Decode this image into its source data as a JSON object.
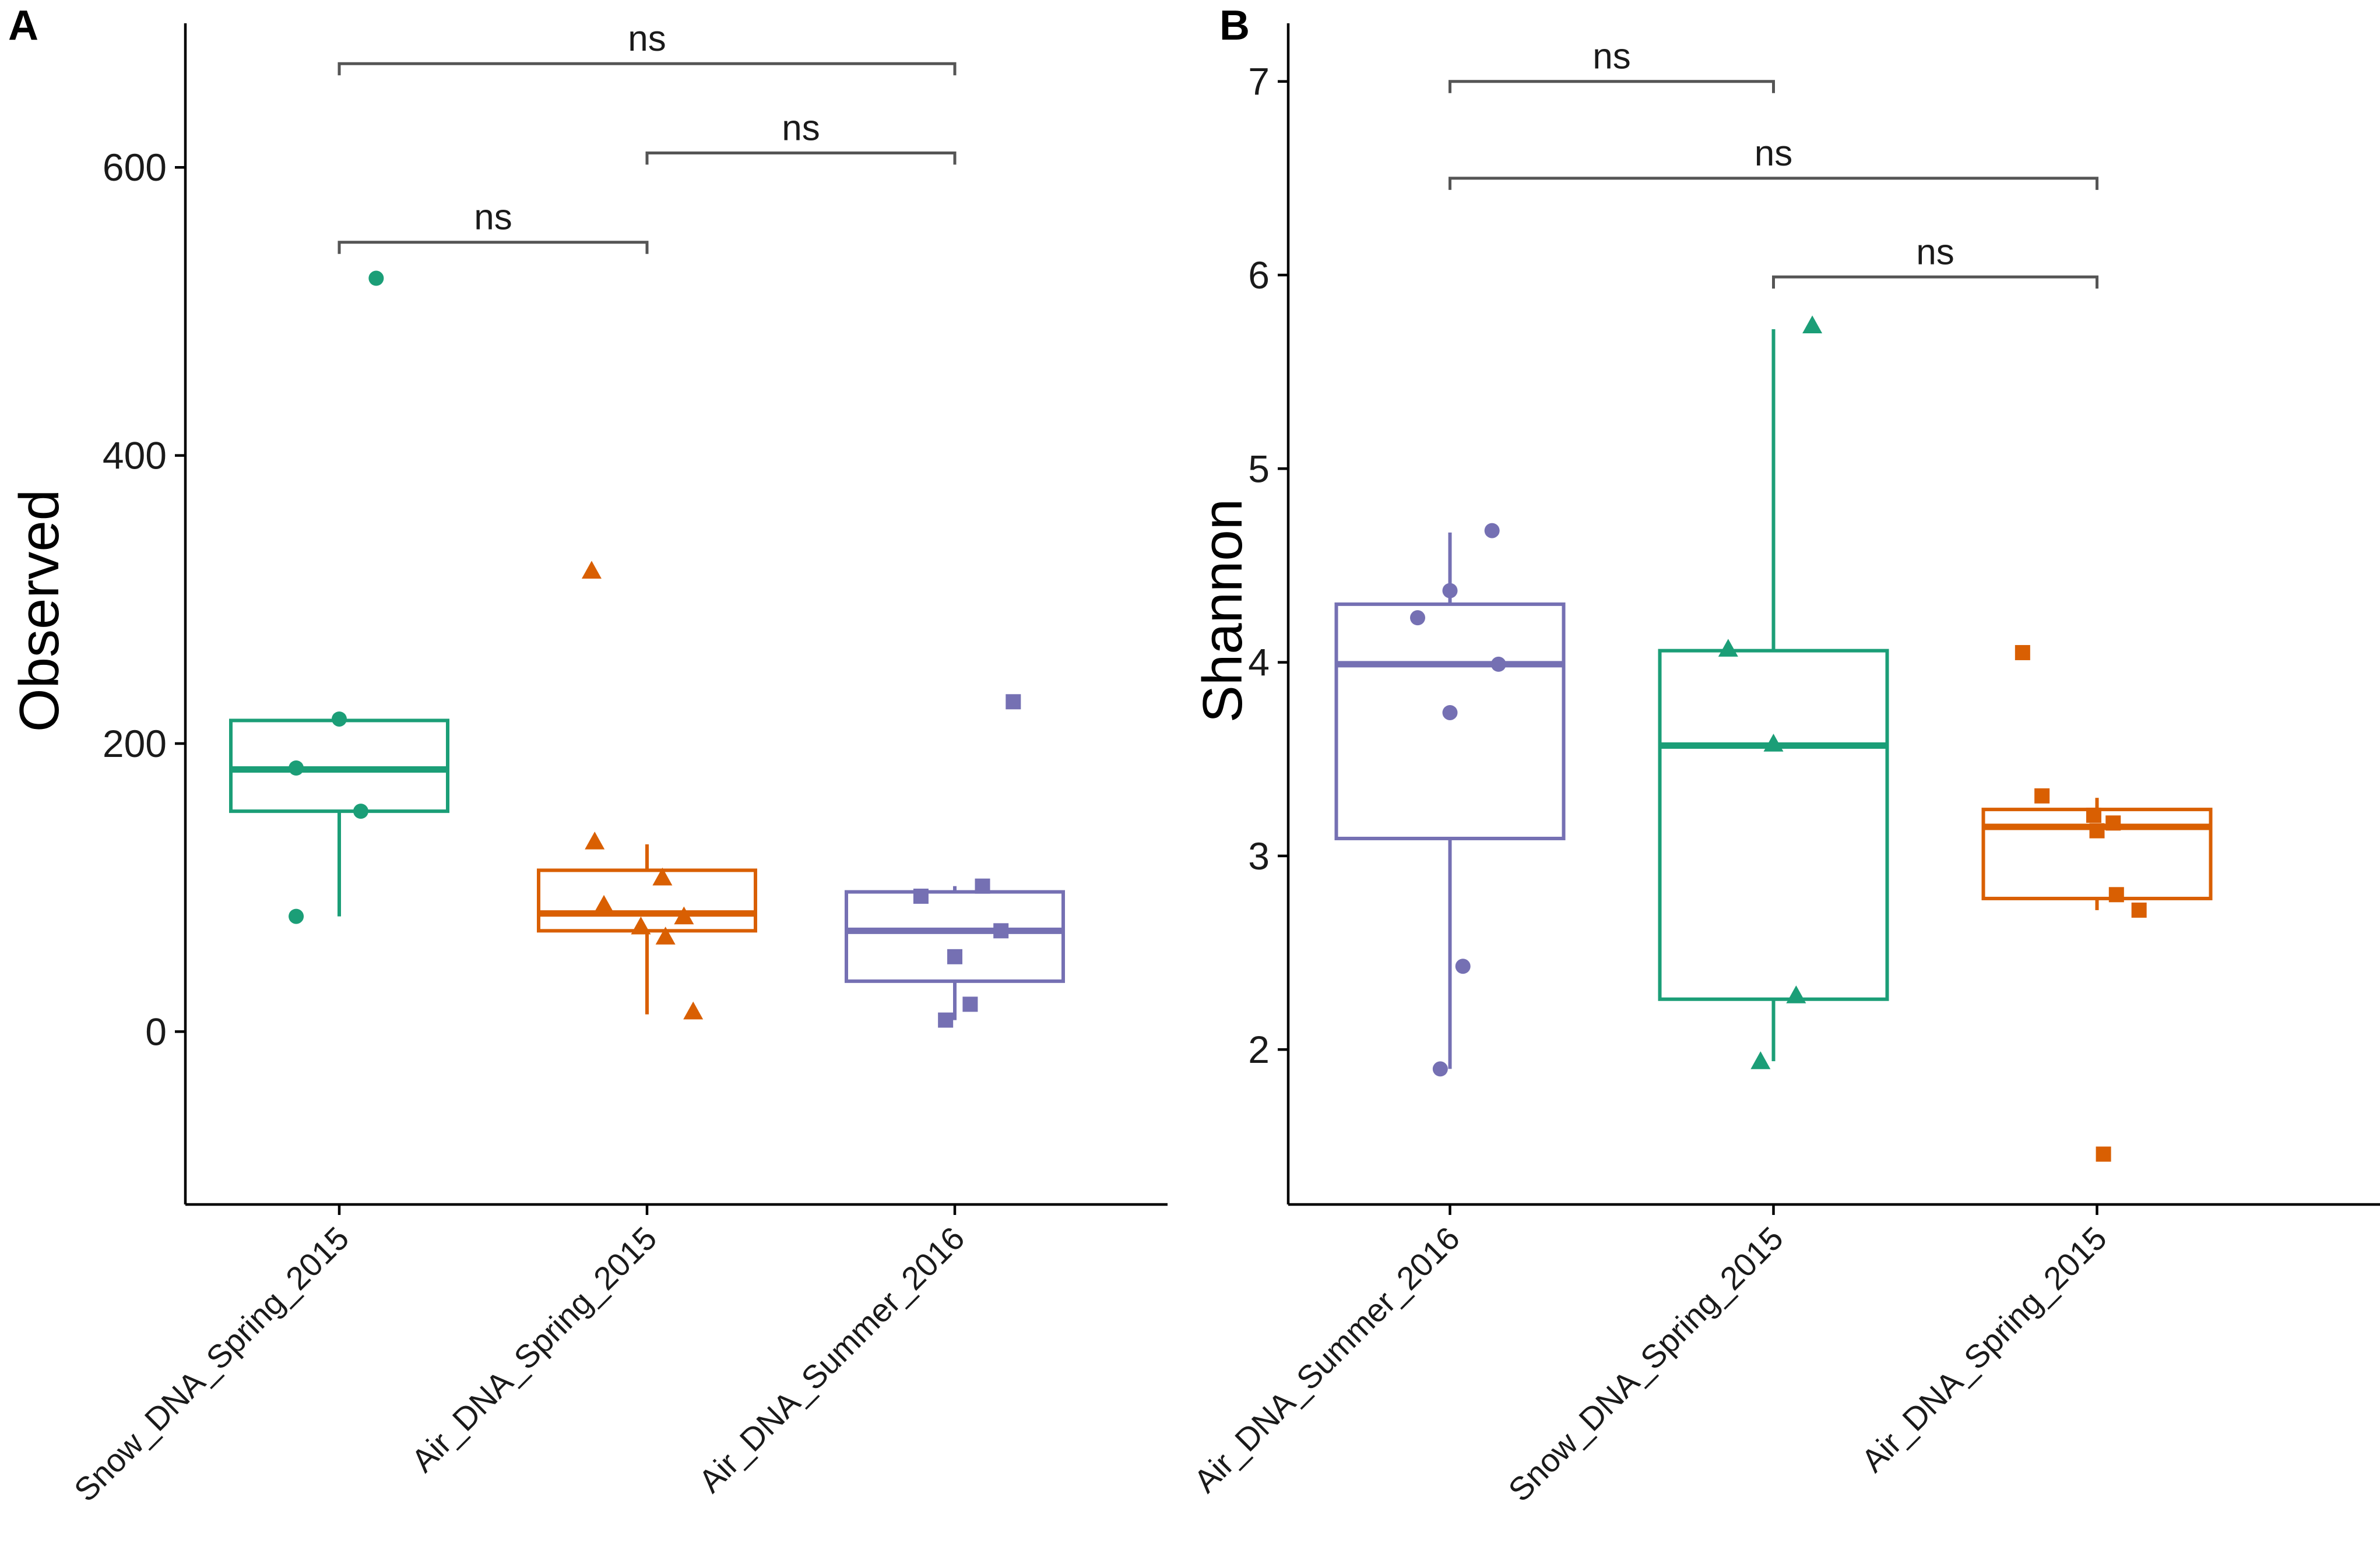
{
  "figure": {
    "colors": {
      "green": "#1b9e77",
      "orange": "#d95f02",
      "purple": "#7570b3"
    }
  },
  "chart_data": [
    {
      "panel_label": "A",
      "type": "box",
      "title": "",
      "xlabel": "",
      "ylabel": "Observed",
      "ylim": [
        -120,
        700
      ],
      "yticks": [
        0,
        200,
        400,
        600
      ],
      "categories": [
        "Snow_DNA_Spring_2015",
        "Air_DNA_Spring_2015",
        "Air_DNA_Summer_2016"
      ],
      "series": [
        {
          "name": "Snow_DNA_Spring_2015",
          "color": "#1b9e77",
          "marker": "circle",
          "min": 80,
          "q1": 153,
          "median": 182,
          "q3": 216,
          "max": 216,
          "points": [
            {
              "dx": 0.12,
              "y": 523
            },
            {
              "dx": -0.14,
              "y": 80
            },
            {
              "dx": -0.14,
              "y": 183
            },
            {
              "dx": 0.0,
              "y": 217
            },
            {
              "dx": 0.07,
              "y": 153
            }
          ]
        },
        {
          "name": "Air_DNA_Spring_2015",
          "color": "#d95f02",
          "marker": "triangle",
          "min": 12,
          "q1": 70,
          "median": 82,
          "q3": 112,
          "max": 130,
          "points": [
            {
              "dx": -0.18,
              "y": 320
            },
            {
              "dx": -0.17,
              "y": 132
            },
            {
              "dx": 0.05,
              "y": 107
            },
            {
              "dx": -0.14,
              "y": 88
            },
            {
              "dx": 0.12,
              "y": 80
            },
            {
              "dx": -0.02,
              "y": 73
            },
            {
              "dx": 0.06,
              "y": 66
            },
            {
              "dx": 0.15,
              "y": 14
            }
          ]
        },
        {
          "name": "Air_DNA_Summer_2016",
          "color": "#7570b3",
          "marker": "square",
          "min": 8,
          "q1": 35,
          "median": 70,
          "q3": 97,
          "max": 101,
          "points": [
            {
              "dx": 0.19,
              "y": 229
            },
            {
              "dx": 0.09,
              "y": 101
            },
            {
              "dx": -0.11,
              "y": 94
            },
            {
              "dx": 0.15,
              "y": 70
            },
            {
              "dx": 0.0,
              "y": 52
            },
            {
              "dx": 0.05,
              "y": 19
            },
            {
              "dx": -0.03,
              "y": 8
            }
          ]
        }
      ],
      "comparisons": [
        {
          "from": 0,
          "to": 2,
          "y": 672,
          "label": "ns"
        },
        {
          "from": 1,
          "to": 2,
          "y": 610,
          "label": "ns"
        },
        {
          "from": 0,
          "to": 1,
          "y": 548,
          "label": "ns"
        }
      ]
    },
    {
      "panel_label": "B",
      "type": "box",
      "title": "",
      "xlabel": "",
      "ylabel": "Shannon",
      "ylim": [
        1.2,
        7.3
      ],
      "yticks": [
        2,
        3,
        4,
        5,
        6,
        7
      ],
      "categories": [
        "Air_DNA_Summer_2016",
        "Snow_DNA_Spring_2015",
        "Air_DNA_Spring_2015"
      ],
      "series": [
        {
          "name": "Air_DNA_Summer_2016",
          "color": "#7570b3",
          "marker": "circle",
          "min": 1.9,
          "q1": 3.09,
          "median": 3.99,
          "q3": 4.3,
          "max": 4.67,
          "points": [
            {
              "dx": 0.13,
              "y": 4.68
            },
            {
              "dx": 0.0,
              "y": 4.37
            },
            {
              "dx": -0.1,
              "y": 4.23
            },
            {
              "dx": 0.15,
              "y": 3.99
            },
            {
              "dx": 0.0,
              "y": 3.74
            },
            {
              "dx": 0.04,
              "y": 2.43
            },
            {
              "dx": -0.03,
              "y": 1.9
            }
          ]
        },
        {
          "name": "Snow_DNA_Spring_2015",
          "color": "#1b9e77",
          "marker": "triangle",
          "min": 1.94,
          "q1": 2.26,
          "median": 3.57,
          "q3": 4.06,
          "max": 5.72,
          "points": [
            {
              "dx": 0.12,
              "y": 5.74
            },
            {
              "dx": -0.14,
              "y": 4.07
            },
            {
              "dx": 0.0,
              "y": 3.58
            },
            {
              "dx": 0.07,
              "y": 2.28
            },
            {
              "dx": -0.04,
              "y": 1.94
            }
          ]
        },
        {
          "name": "Air_DNA_Spring_2015",
          "color": "#d95f02",
          "marker": "square",
          "min": 2.72,
          "q1": 2.78,
          "median": 3.15,
          "q3": 3.24,
          "max": 3.3,
          "points": [
            {
              "dx": -0.23,
              "y": 4.05
            },
            {
              "dx": -0.17,
              "y": 3.31
            },
            {
              "dx": -0.01,
              "y": 3.21
            },
            {
              "dx": 0.05,
              "y": 3.17
            },
            {
              "dx": 0.0,
              "y": 3.13
            },
            {
              "dx": 0.06,
              "y": 2.8
            },
            {
              "dx": 0.13,
              "y": 2.72
            },
            {
              "dx": 0.02,
              "y": 1.46
            }
          ]
        }
      ],
      "comparisons": [
        {
          "from": 0,
          "to": 1,
          "y": 7.0,
          "label": "ns"
        },
        {
          "from": 0,
          "to": 2,
          "y": 6.5,
          "label": "ns"
        },
        {
          "from": 1,
          "to": 2,
          "y": 5.99,
          "label": "ns"
        }
      ]
    }
  ]
}
